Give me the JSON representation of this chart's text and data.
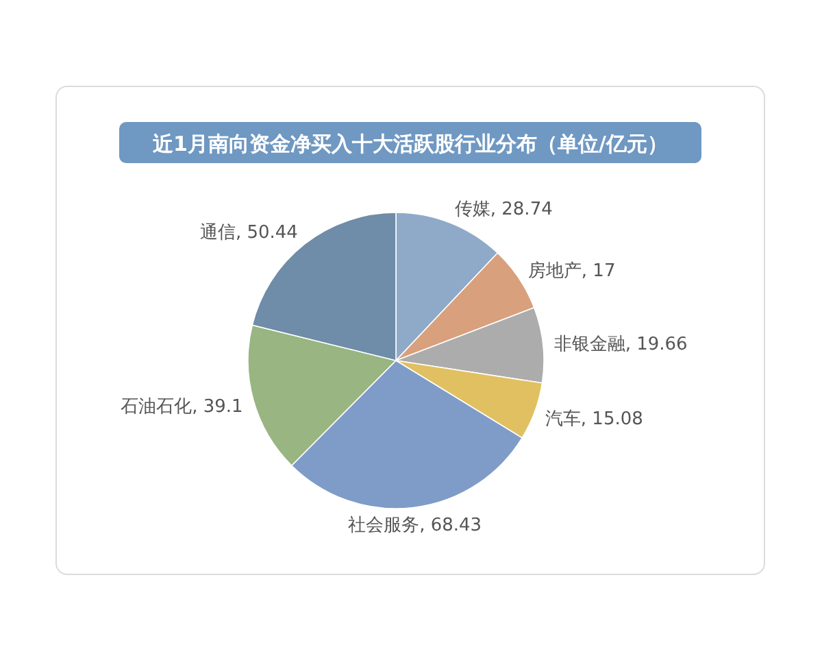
{
  "chart_data": {
    "type": "pie",
    "title": "近1月南向资金净买入十大活跃股行业分布（单位/亿元）",
    "categories": [
      "传媒",
      "房地产",
      "非银金融",
      "汽车",
      "社会服务",
      "石油石化",
      "通信"
    ],
    "values": [
      28.74,
      17,
      19.66,
      15.08,
      68.43,
      39.1,
      50.44
    ],
    "colors": [
      "#8eaac8",
      "#d8a07c",
      "#acacac",
      "#e0c060",
      "#7f9cc8",
      "#98b582",
      "#6f8ca8"
    ],
    "value_labels": [
      ", 28.74",
      ", 17",
      ", 19.66",
      ", 15.08",
      ", 68.43",
      ", 39.1",
      ", 50.44"
    ]
  }
}
